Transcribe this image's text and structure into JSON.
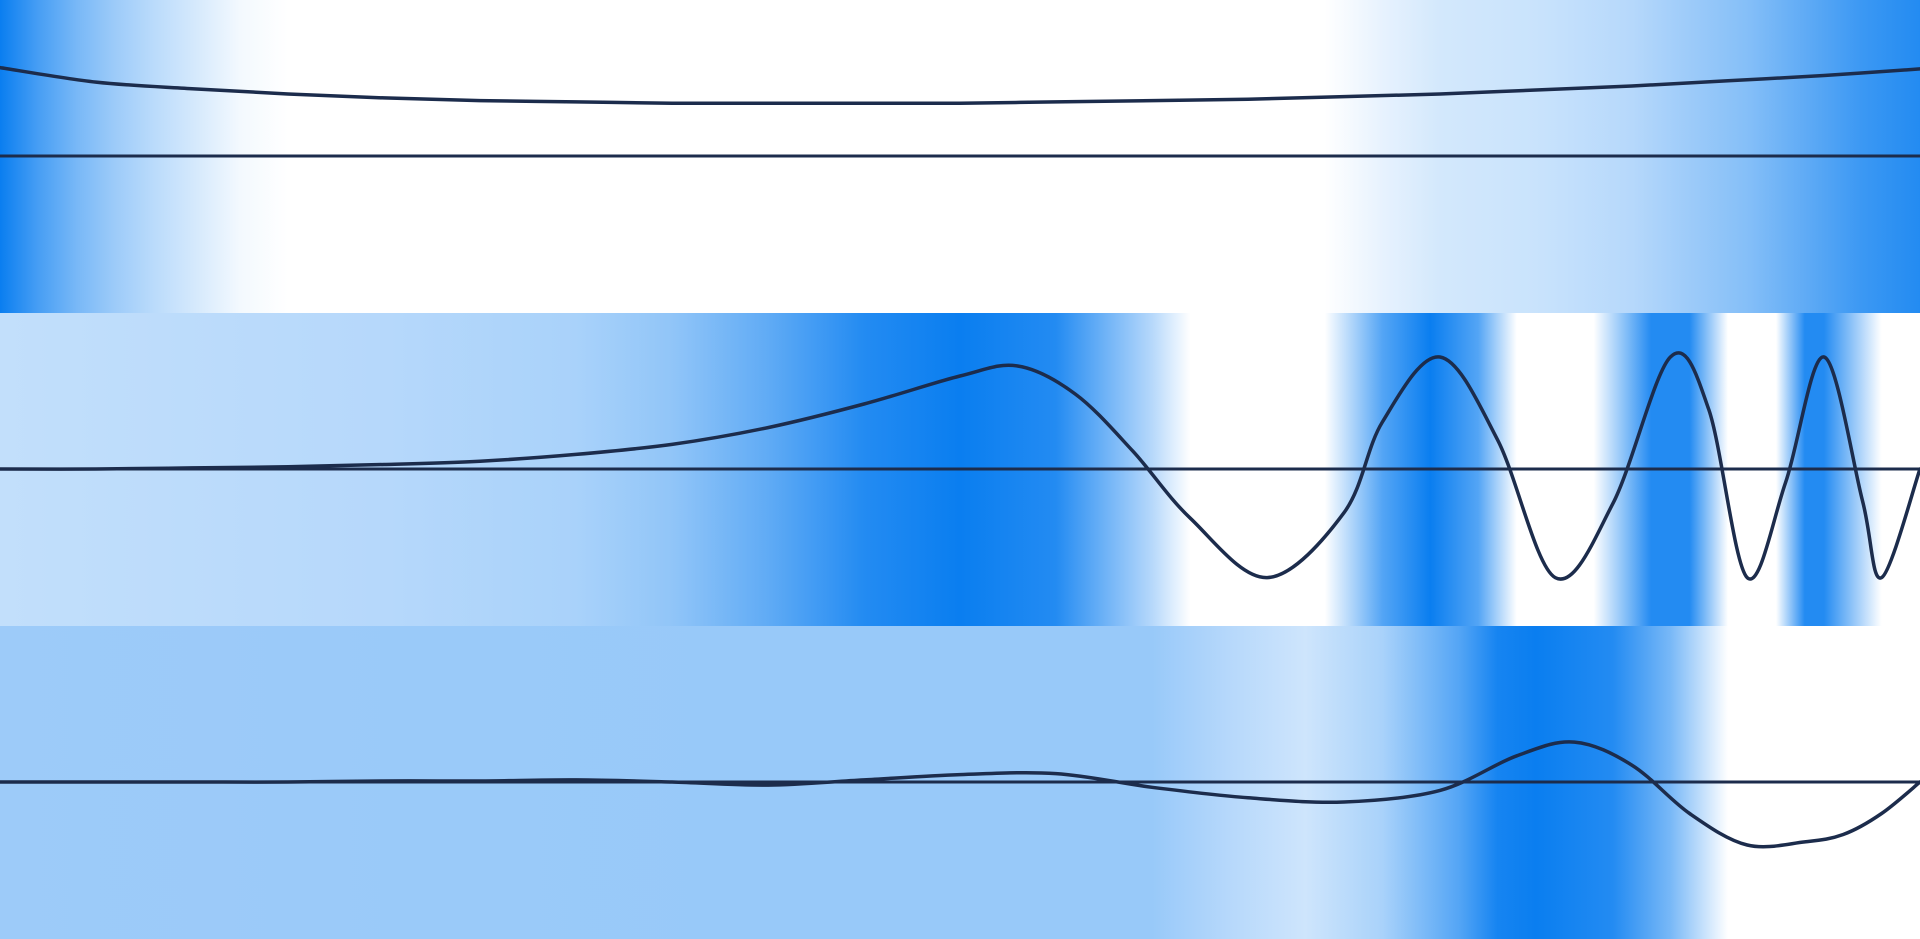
{
  "chart_data": [
    {
      "type": "line",
      "panel": "top",
      "grid": false,
      "legend": "none",
      "colors": {
        "curve": "#1c2c4c",
        "axis": "#1c2c4c",
        "band_dark": "#0a7ef0",
        "band_light": "#ffffff"
      },
      "xlim": [
        0,
        1
      ],
      "ylim": [
        -1,
        1
      ],
      "x": [
        0,
        0.05,
        0.1,
        0.15,
        0.2,
        0.25,
        0.3,
        0.35,
        0.4,
        0.45,
        0.5,
        0.55,
        0.6,
        0.65,
        0.7,
        0.75,
        0.8,
        0.85,
        0.9,
        0.95,
        1
      ],
      "y": [
        0.67,
        0.56,
        0.51,
        0.47,
        0.44,
        0.42,
        0.41,
        0.4,
        0.4,
        0.4,
        0.4,
        0.41,
        0.42,
        0.43,
        0.45,
        0.47,
        0.5,
        0.53,
        0.57,
        0.61,
        0.66
      ],
      "band": {
        "x": [
          0,
          0.02,
          0.04,
          0.06,
          0.08,
          0.1,
          0.125,
          0.15,
          0.5,
          0.69,
          0.72,
          0.75,
          0.8,
          0.85,
          0.88,
          0.91,
          0.94,
          0.97,
          1
        ],
        "intensity": [
          1,
          0.75,
          0.55,
          0.4,
          0.28,
          0.18,
          0.05,
          0,
          0,
          0,
          0.1,
          0.18,
          0.22,
          0.3,
          0.4,
          0.5,
          0.65,
          0.8,
          0.9
        ]
      }
    },
    {
      "type": "line",
      "panel": "middle",
      "grid": false,
      "legend": "none",
      "colors": {
        "curve": "#1c2c4c",
        "axis": "#1c2c4c",
        "band_dark": "#0a7ef0",
        "band_light": "#ffffff"
      },
      "xlim": [
        0,
        1
      ],
      "ylim": [
        -1.2,
        1.2
      ],
      "x": [
        0,
        0.05,
        0.1,
        0.15,
        0.2,
        0.25,
        0.3,
        0.35,
        0.4,
        0.45,
        0.5,
        0.53,
        0.56,
        0.59,
        0.62,
        0.66,
        0.7,
        0.72,
        0.75,
        0.78,
        0.81,
        0.84,
        0.87,
        0.89,
        0.91,
        0.93,
        0.95,
        0.97,
        0.98,
        1
      ],
      "y": [
        0,
        0,
        0.01,
        0.02,
        0.04,
        0.07,
        0.13,
        0.22,
        0.37,
        0.58,
        0.83,
        0.92,
        0.67,
        0.16,
        -0.44,
        -0.97,
        -0.39,
        0.42,
        1.0,
        0.26,
        -0.97,
        -0.31,
        1.0,
        0.53,
        -0.97,
        -0.12,
        1.0,
        -0.28,
        -0.97,
        0
      ],
      "band": {
        "x": [
          0,
          0.2,
          0.3,
          0.35,
          0.4,
          0.45,
          0.5,
          0.55,
          0.6,
          0.62,
          0.69,
          0.72,
          0.745,
          0.77,
          0.79,
          0.83,
          0.86,
          0.88,
          0.9,
          0.925,
          0.94,
          0.95,
          0.98,
          1
        ],
        "intensity": [
          0.25,
          0.3,
          0.35,
          0.45,
          0.65,
          0.9,
          1,
          0.9,
          0.3,
          0,
          0,
          0.7,
          1,
          0.7,
          0,
          0,
          0.9,
          0.9,
          0,
          0,
          0.9,
          0.9,
          0,
          0
        ]
      }
    },
    {
      "type": "line",
      "panel": "bottom",
      "grid": false,
      "legend": "none",
      "colors": {
        "curve": "#1c2c4c",
        "axis": "#1c2c4c",
        "band_dark": "#0a7ef0",
        "band_light": "#ffffff"
      },
      "xlim": [
        0,
        1
      ],
      "ylim": [
        -1.2,
        1.2
      ],
      "x": [
        0,
        0.05,
        0.1,
        0.15,
        0.2,
        0.25,
        0.3,
        0.35,
        0.4,
        0.45,
        0.5,
        0.55,
        0.6,
        0.65,
        0.7,
        0.75,
        0.79,
        0.82,
        0.85,
        0.88,
        0.91,
        0.94,
        0.96,
        0.98,
        1
      ],
      "y": [
        0,
        0,
        0,
        0,
        0.01,
        0.01,
        0.02,
        0,
        -0.03,
        0.02,
        0.07,
        0.08,
        -0.05,
        -0.15,
        -0.19,
        -0.08,
        0.25,
        0.38,
        0.16,
        -0.3,
        -0.6,
        -0.57,
        -0.5,
        -0.3,
        0
      ],
      "band": {
        "x": [
          0,
          0.4,
          0.5,
          0.6,
          0.64,
          0.68,
          0.72,
          0.76,
          0.78,
          0.8,
          0.84,
          0.87,
          0.9,
          1
        ],
        "intensity": [
          0.4,
          0.42,
          0.42,
          0.42,
          0.3,
          0.2,
          0.35,
          0.7,
          0.95,
          1,
          0.9,
          0.55,
          0,
          0
        ]
      }
    }
  ]
}
